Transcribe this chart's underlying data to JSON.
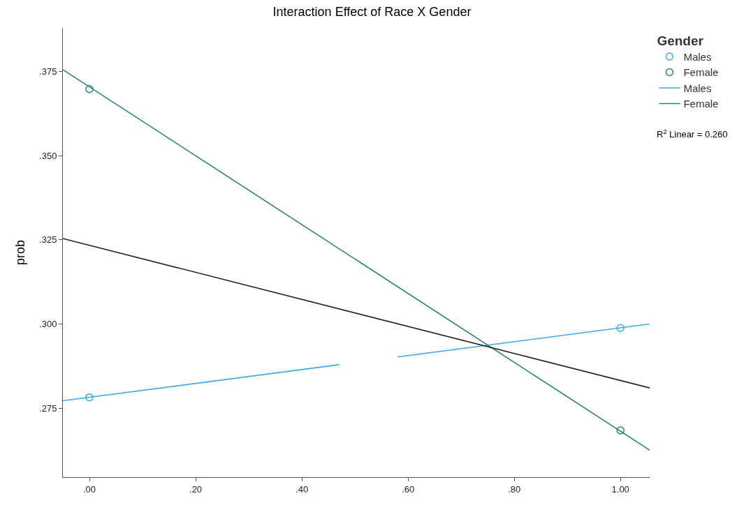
{
  "chart_data": {
    "type": "scatter",
    "title": "Interaction Effect of Race X Gender",
    "ylabel": "prob",
    "legend_title": "Gender",
    "xlim": [
      -0.05,
      1.055
    ],
    "xticks": [
      {
        "value": 0,
        "label": ".00"
      },
      {
        "value": 0.2,
        "label": ".20"
      },
      {
        "value": 0.4,
        "label": ".40"
      },
      {
        "value": 0.6,
        "label": ".60"
      },
      {
        "value": 0.8,
        "label": ".80"
      },
      {
        "value": 1,
        "label": "1.00"
      }
    ],
    "ylim": [
      0.2545,
      0.388
    ],
    "yticks": [
      {
        "value": 0.275,
        "label": ".275"
      },
      {
        "value": 0.3,
        "label": ".300"
      },
      {
        "value": 0.325,
        "label": ".325"
      },
      {
        "value": 0.35,
        "label": ".350"
      },
      {
        "value": 0.375,
        "label": ".375"
      }
    ],
    "legend": "top right",
    "annotations": [
      "R$^{2}$ Linear = 0.260"
    ],
    "series": [
      {
        "name": "Males",
        "marker": "circle",
        "color": "#3fa9e6",
        "x": [
          0,
          1
        ],
        "values": [
          0.2782,
          0.2988
        ]
      },
      {
        "name": "Female",
        "marker": "circle",
        "color": "#2e7f7c",
        "x": [
          0,
          1
        ],
        "values": [
          0.3698,
          0.2684
        ]
      },
      {
        "name": "Males",
        "type": "line",
        "color": "#3fa9e6",
        "x": [
          -0.05,
          0.47,
          0.525,
          0.58,
          1.055
        ],
        "values": [
          0.2772,
          0.2879,
          null,
          0.2902,
          0.3
        ]
      },
      {
        "name": "Female",
        "type": "line",
        "color": "#2e7f7c",
        "x": [
          -0.05,
          1.055
        ],
        "values": [
          0.3756,
          0.2625
        ]
      },
      {
        "type": "line",
        "color": "#222222",
        "x": [
          -0.05,
          1.055
        ],
        "values": [
          0.3254,
          0.281
        ]
      }
    ]
  }
}
